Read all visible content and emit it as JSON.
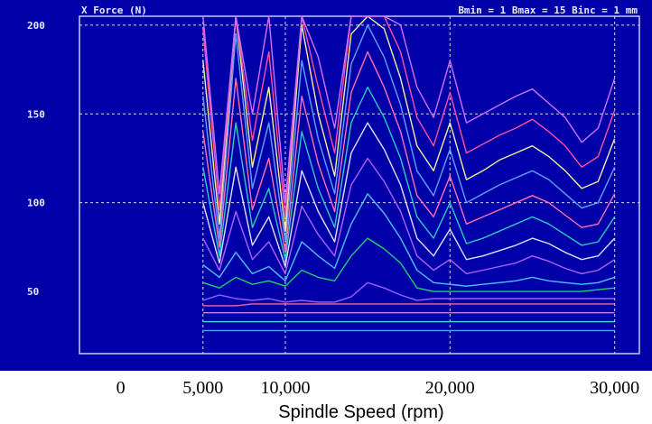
{
  "chart_data": {
    "type": "line",
    "title": "X Force (N)",
    "annotation": "Bmin = 1 Bmax = 15 Binc = 1 mm",
    "xlabel": "Spindle Speed (rpm)",
    "ylabel": "",
    "xlim": [
      -2500,
      31500
    ],
    "ylim": [
      15,
      205
    ],
    "x_ticks": [
      0,
      5000,
      10000,
      20000,
      30000
    ],
    "x_tick_labels": [
      "0",
      "5,000",
      "10,000",
      "20,000",
      "30,000"
    ],
    "y_ticks": [
      50,
      100,
      150,
      200
    ],
    "y_tick_labels": [
      "50",
      "100",
      "150",
      "200"
    ],
    "grid": true,
    "legend": "none",
    "x": [
      5000,
      6000,
      7000,
      8000,
      9000,
      10000,
      11000,
      12000,
      13000,
      14000,
      15000,
      16000,
      17000,
      18000,
      19000,
      20000,
      21000,
      22000,
      23000,
      24000,
      25000,
      26000,
      27000,
      28000,
      29000,
      30000
    ],
    "series": [
      {
        "color": "#4fa0ff",
        "values": [
          28,
          28,
          28,
          28,
          28,
          28,
          28,
          28,
          28,
          28,
          28,
          28,
          28,
          28,
          28,
          28,
          28,
          28,
          28,
          28,
          28,
          28,
          28,
          28,
          28,
          28
        ]
      },
      {
        "color": "#40e0d0",
        "values": [
          33,
          33,
          33,
          33,
          33,
          33,
          33,
          33,
          33,
          33,
          33,
          33,
          33,
          33,
          33,
          33,
          33,
          33,
          33,
          33,
          33,
          33,
          33,
          33,
          33,
          33
        ]
      },
      {
        "color": "#c080ff",
        "values": [
          38,
          38,
          38,
          38,
          38,
          38,
          38,
          38,
          38,
          38,
          38,
          38,
          38,
          38,
          38,
          38,
          38,
          38,
          38,
          38,
          38,
          38,
          38,
          38,
          38,
          38
        ]
      },
      {
        "color": "#ff60a0",
        "values": [
          42,
          42,
          42,
          43,
          43,
          43,
          43,
          43,
          43,
          43,
          43,
          43,
          43,
          43,
          43,
          43,
          43,
          43,
          43,
          43,
          43,
          43,
          43,
          43,
          43,
          43
        ]
      },
      {
        "color": "#9a60ff",
        "values": [
          45,
          48,
          46,
          45,
          46,
          44,
          45,
          44,
          44,
          47,
          55,
          52,
          48,
          45,
          46,
          46,
          46,
          46,
          46,
          46,
          46,
          46,
          46,
          46,
          46,
          46
        ]
      },
      {
        "color": "#20d070",
        "values": [
          55,
          52,
          58,
          54,
          56,
          53,
          62,
          58,
          56,
          70,
          80,
          74,
          66,
          52,
          50,
          50,
          50,
          50,
          50,
          50,
          50,
          50,
          50,
          50,
          51,
          52
        ]
      },
      {
        "color": "#50c0ff",
        "values": [
          65,
          58,
          72,
          60,
          64,
          56,
          78,
          70,
          63,
          88,
          105,
          94,
          80,
          62,
          55,
          54,
          53,
          54,
          55,
          56,
          58,
          56,
          55,
          54,
          55,
          58
        ]
      },
      {
        "color": "#b060ff",
        "values": [
          80,
          62,
          95,
          68,
          78,
          60,
          98,
          82,
          70,
          110,
          125,
          112,
          95,
          70,
          62,
          68,
          60,
          62,
          64,
          66,
          70,
          67,
          63,
          60,
          62,
          68
        ]
      },
      {
        "color": "#e0e0ff",
        "values": [
          100,
          66,
          120,
          76,
          92,
          64,
          118,
          95,
          78,
          128,
          145,
          130,
          110,
          80,
          70,
          85,
          68,
          70,
          73,
          76,
          80,
          77,
          72,
          68,
          70,
          80
        ]
      },
      {
        "color": "#30c8c8",
        "values": [
          120,
          70,
          145,
          86,
          108,
          68,
          140,
          108,
          86,
          145,
          165,
          148,
          125,
          92,
          80,
          100,
          77,
          80,
          84,
          88,
          92,
          88,
          82,
          76,
          78,
          92
        ]
      },
      {
        "color": "#ff6fb0",
        "values": [
          140,
          75,
          170,
          96,
          125,
          72,
          160,
          122,
          95,
          162,
          185,
          165,
          140,
          104,
          92,
          115,
          88,
          92,
          96,
          100,
          104,
          100,
          93,
          86,
          88,
          105
        ]
      },
      {
        "color": "#60a0ff",
        "values": [
          160,
          80,
          195,
          108,
          145,
          78,
          180,
          136,
          105,
          178,
          200,
          182,
          155,
          118,
          104,
          130,
          100,
          105,
          110,
          114,
          118,
          113,
          105,
          97,
          100,
          120
        ]
      },
      {
        "color": "#f0f0a0",
        "values": [
          180,
          88,
          205,
          120,
          165,
          84,
          200,
          150,
          115,
          195,
          205,
          198,
          170,
          132,
          118,
          145,
          113,
          118,
          124,
          128,
          132,
          126,
          118,
          108,
          112,
          136
        ]
      },
      {
        "color": "#ff4fa0",
        "values": [
          198,
          96,
          205,
          135,
          185,
          92,
          205,
          165,
          128,
          205,
          205,
          205,
          185,
          148,
          132,
          162,
          128,
          133,
          138,
          142,
          147,
          140,
          132,
          120,
          126,
          152
        ]
      },
      {
        "color": "#d070ff",
        "values": [
          205,
          105,
          205,
          150,
          205,
          100,
          205,
          182,
          142,
          205,
          205,
          205,
          200,
          165,
          148,
          180,
          145,
          150,
          155,
          160,
          164,
          156,
          148,
          134,
          142,
          170
        ]
      }
    ]
  }
}
